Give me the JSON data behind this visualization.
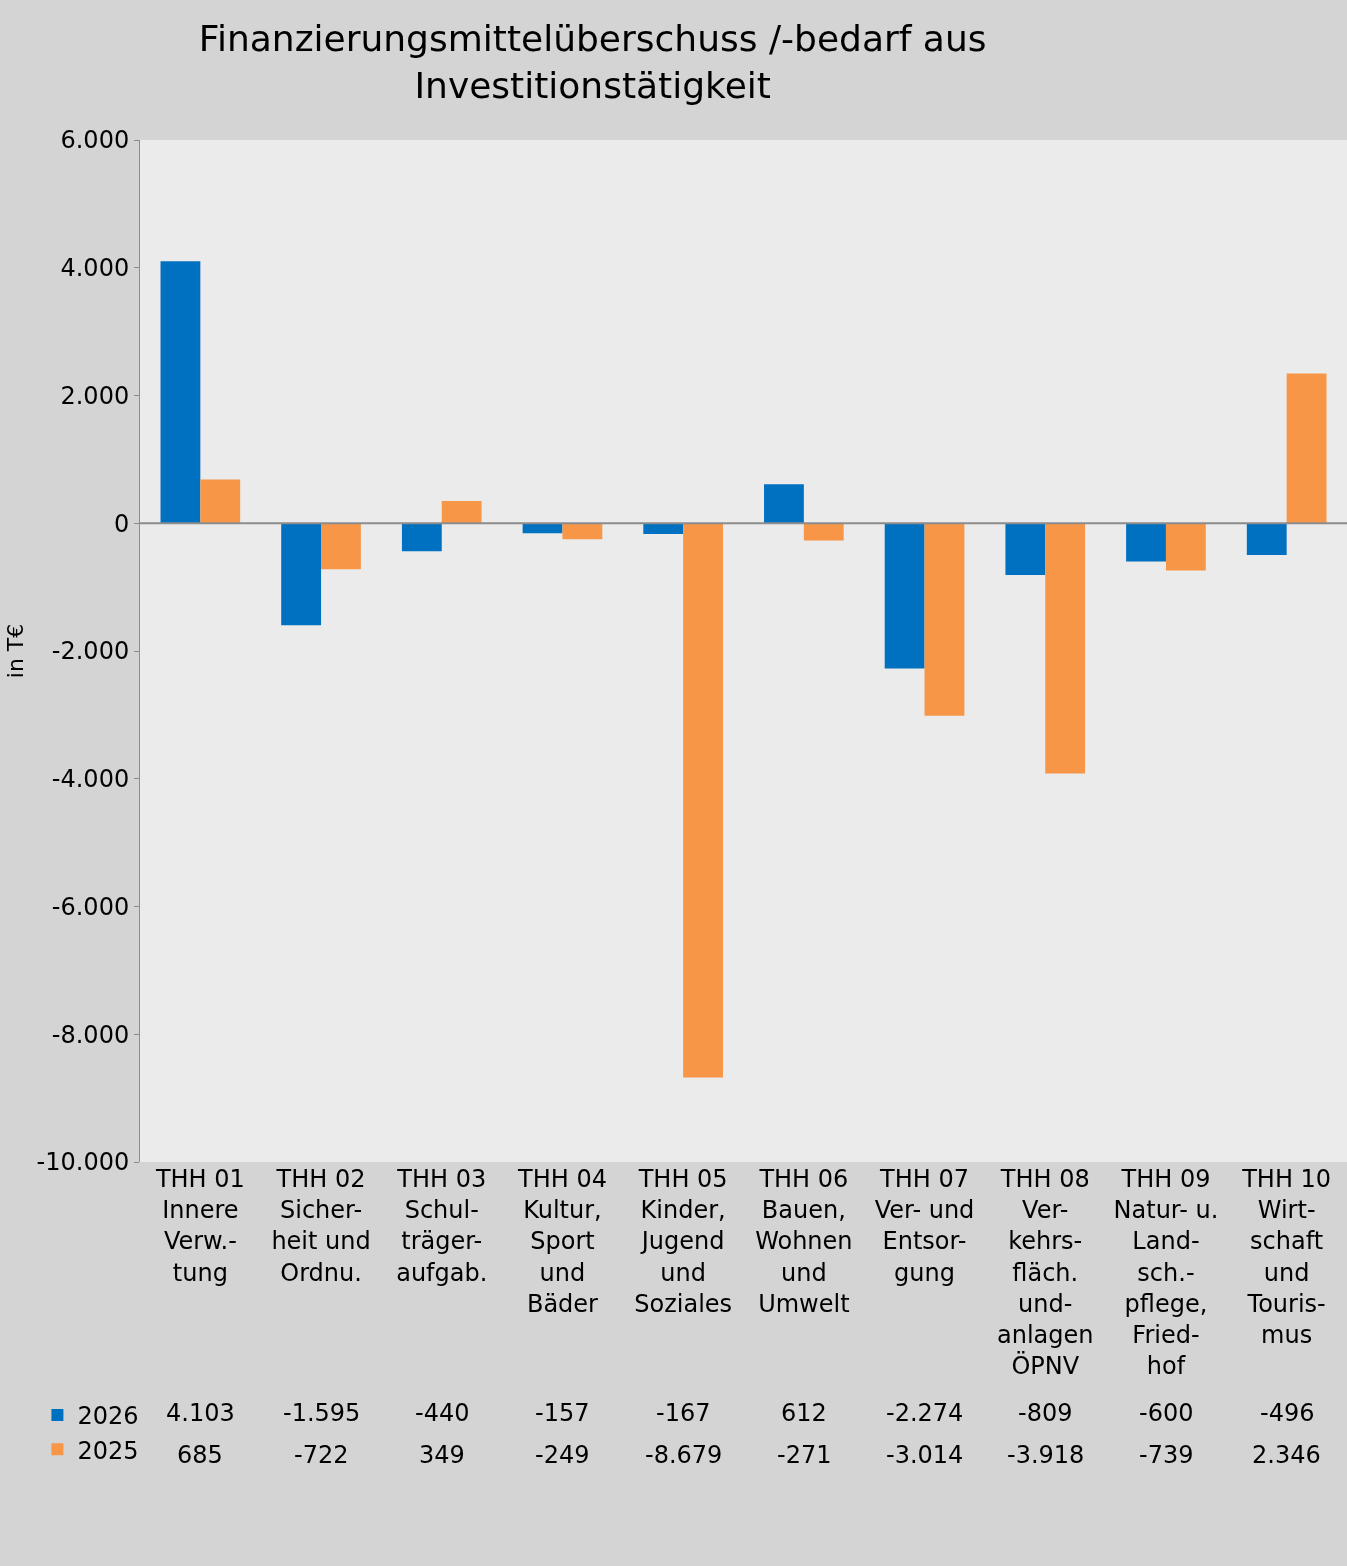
{
  "chart_data": {
    "type": "bar",
    "title": "Finanzierungsmittelüberschuss /-bedarf aus\nInvestitionstätigkeit",
    "ylabel": "in T€",
    "categories": [
      "THH 01\nInnere\nVerw.-\ntung",
      "THH 02\nSicher-\nheit und\nOrdnu.",
      "THH 03\nSchul-\nträger-\naufgab.",
      "THH 04\nKultur,\nSport\nund\nBäder",
      "THH 05\nKinder,\nJugend\nund\nSoziales",
      "THH 06\nBauen,\nWohnen\nund\nUmwelt",
      "THH 07\nVer- und\nEntsor-\ngung",
      "THH 08\nVer-\nkehrs-\nfläch.\nund-\nanlagen\nÖPNV",
      "THH 09\nNatur- u.\nLand-\nsch.-\npflege,\nFried-\nhof",
      "THH 10\nWirt-\nschaft\nund\nTouris-\nmus"
    ],
    "series": [
      {
        "name": "2026",
        "color": "#0070c0",
        "values": [
          4103,
          -1595,
          -440,
          -157,
          -167,
          612,
          -2274,
          -809,
          -600,
          -496
        ],
        "value_labels": [
          "4.103",
          "-1.595",
          "-440",
          "-157",
          "-167",
          "612",
          "-2.274",
          "-809",
          "-600",
          "-496"
        ]
      },
      {
        "name": "2025",
        "color": "#f79646",
        "values": [
          685,
          -722,
          349,
          -249,
          -8679,
          -271,
          -3014,
          -3918,
          -739,
          2346
        ],
        "value_labels": [
          "685",
          "-722",
          "349",
          "-249",
          "-8.679",
          "-271",
          "-3.014",
          "-3.918",
          "-739",
          "2.346"
        ]
      }
    ],
    "ylim": [
      -10000,
      6000
    ],
    "yticks": [
      {
        "value": -10000,
        "label": "-10.000"
      },
      {
        "value": -8000,
        "label": "-8.000"
      },
      {
        "value": -6000,
        "label": "-6.000"
      },
      {
        "value": -4000,
        "label": "-4.000"
      },
      {
        "value": -2000,
        "label": "-2.000"
      },
      {
        "value": 0,
        "label": "0"
      },
      {
        "value": 2000,
        "label": "2.000"
      },
      {
        "value": 4000,
        "label": "4.000"
      },
      {
        "value": 6000,
        "label": "6.000"
      }
    ],
    "legend": "bottom left",
    "ref_lines": [
      {
        "axis": "y",
        "value": 0,
        "color": "#8c8c8c"
      }
    ],
    "grid": false
  }
}
